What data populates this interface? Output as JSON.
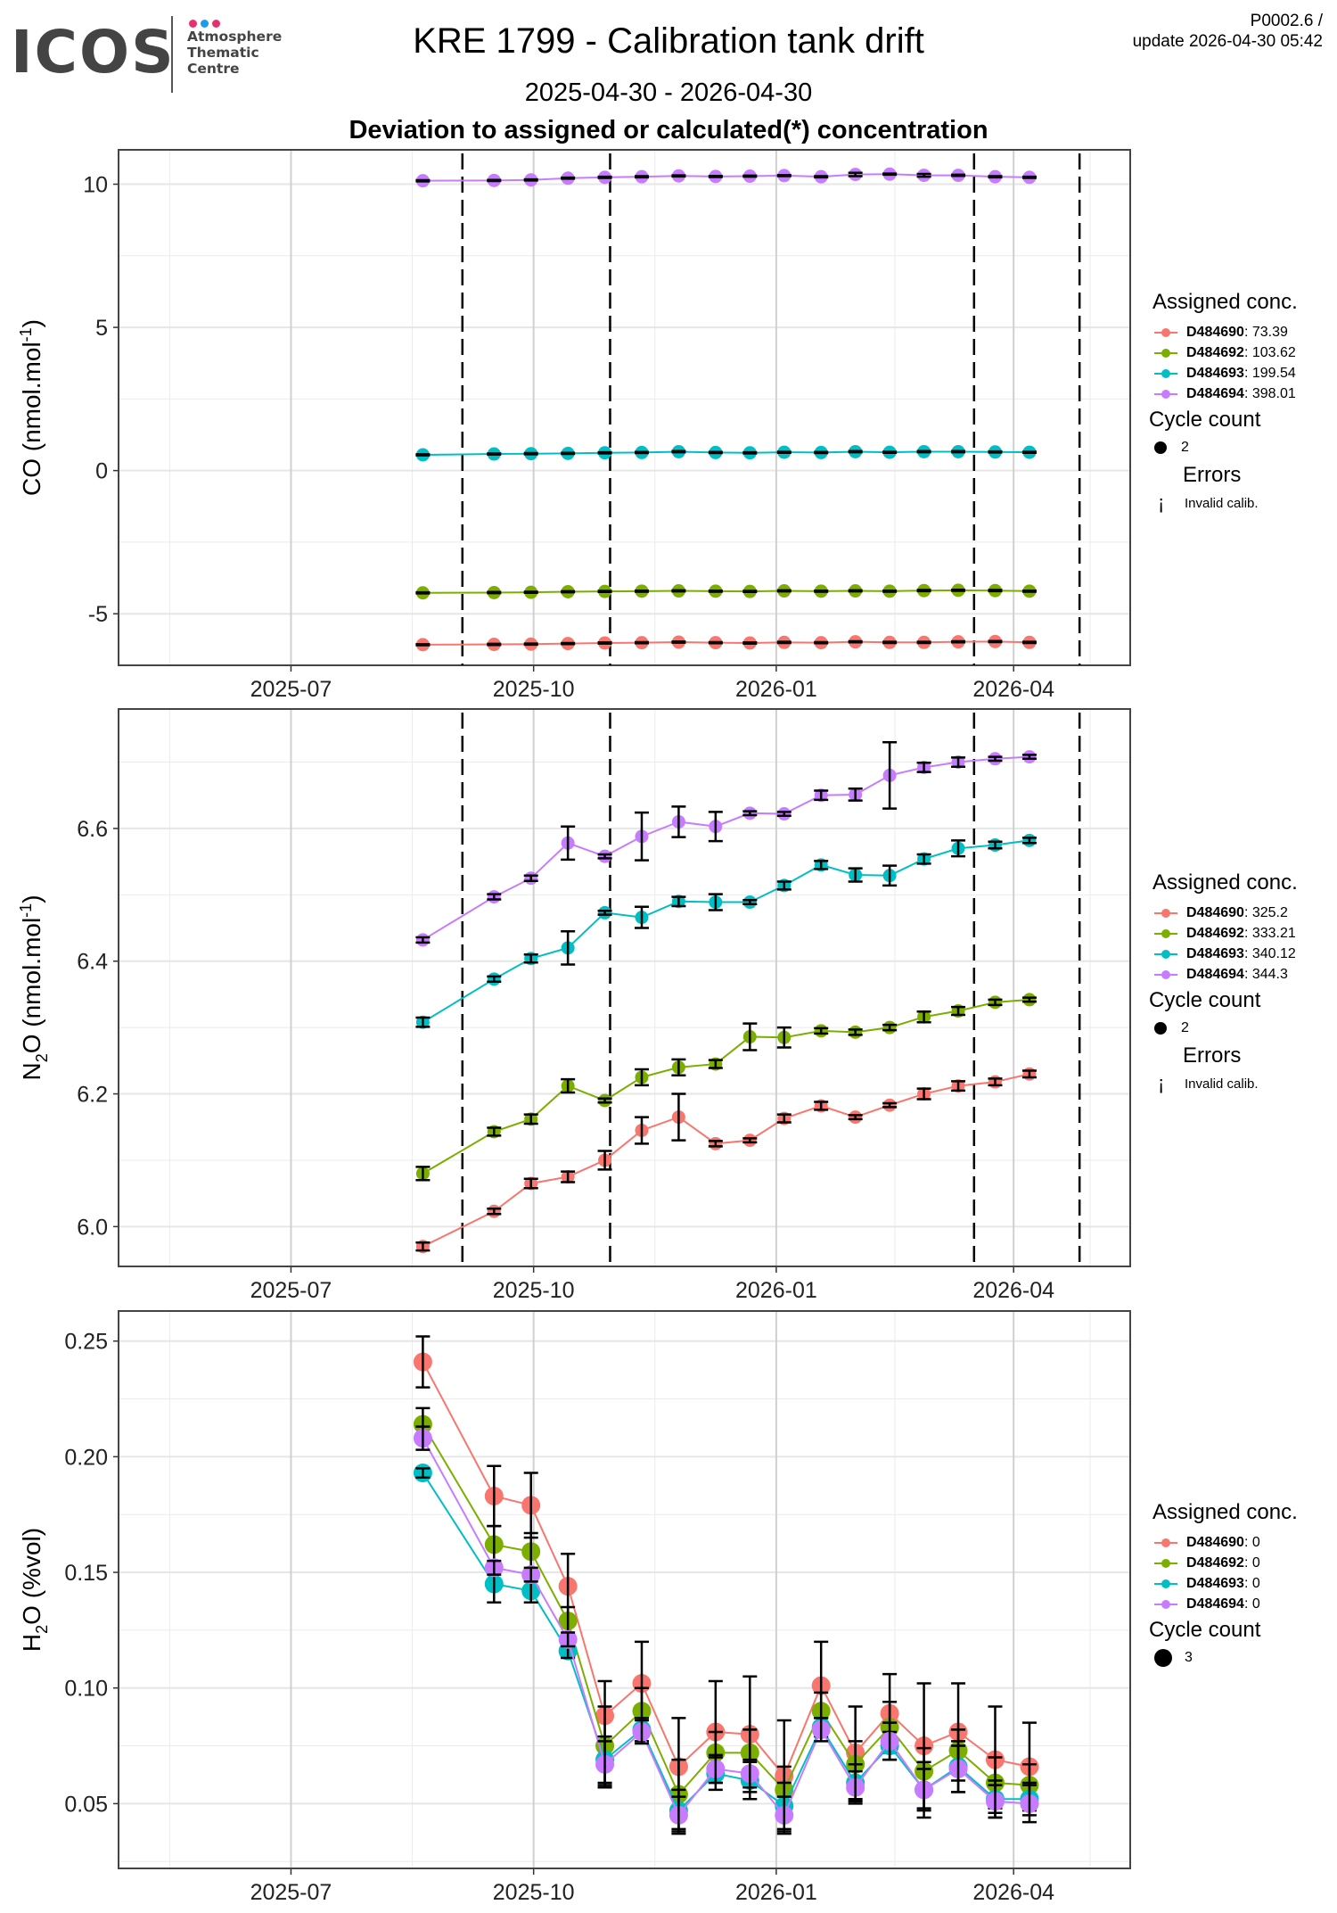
{
  "header": {
    "logo_text": "ICOS",
    "logo_sub": [
      "Atmosphere",
      "Thematic",
      "Centre"
    ],
    "logo_dot_colors": [
      "#e6306f",
      "#1e9be9",
      "#e6306f"
    ],
    "title": "KRE 1799 - Calibration tank drift",
    "date_range": "2025-04-30 - 2026-04-30",
    "subtitle": "Deviation to assigned or calculated(*) concentration",
    "meta_line1": "P0002.6 /",
    "meta_line2": "update  2026-04-30 05:42"
  },
  "series_colors": {
    "D484690": "#F8766D",
    "D484692": "#7CAE00",
    "D484693": "#00BFC4",
    "D484694": "#C77CFF"
  },
  "chart_data": [
    {
      "type": "line",
      "panel": "CO",
      "ylabel": "CO (nmol.mol-1)",
      "ylabel_main": "CO (nmol.mol",
      "ylabel_sup": "-1",
      "ylabel_end": ")",
      "ylim": [
        -6.8,
        11.2
      ],
      "yticks": [
        -5,
        0,
        5,
        10
      ],
      "ytick_labels": [
        "-5",
        "0",
        "5",
        "10"
      ],
      "xlim": [
        "2025-04-30",
        "2026-04-30"
      ],
      "xticks": [
        "2025-07-01",
        "2025-10-01",
        "2026-01-01",
        "2026-04-01"
      ],
      "xtick_labels": [
        "2025-07",
        "2025-10",
        "2026-01",
        "2026-04"
      ],
      "grid": true,
      "vlines_dashed": [
        "2025-09-04",
        "2025-10-30",
        "2026-03-17",
        "2026-04-26"
      ],
      "x": [
        "2025-08-20",
        "2025-09-16",
        "2025-09-30",
        "2025-10-14",
        "2025-10-28",
        "2025-11-11",
        "2025-11-25",
        "2025-12-09",
        "2025-12-22",
        "2026-01-04",
        "2026-01-18",
        "2026-01-31",
        "2026-02-13",
        "2026-02-26",
        "2026-03-11",
        "2026-03-25",
        "2026-04-07"
      ],
      "series": [
        {
          "name": "D484690",
          "values": [
            -6.08,
            -6.07,
            -6.06,
            -6.04,
            -6.02,
            -6.01,
            -5.99,
            -6.01,
            -6.02,
            -6.0,
            -6.01,
            -5.98,
            -6.0,
            -6.0,
            -5.98,
            -5.97,
            -6.0
          ],
          "errors": [
            0.02,
            0.02,
            0.02,
            0.02,
            0.02,
            0.02,
            0.02,
            0.02,
            0.02,
            0.02,
            0.02,
            0.02,
            0.02,
            0.02,
            0.02,
            0.02,
            0.02
          ]
        },
        {
          "name": "D484692",
          "values": [
            -4.27,
            -4.26,
            -4.25,
            -4.23,
            -4.22,
            -4.21,
            -4.2,
            -4.21,
            -4.22,
            -4.2,
            -4.21,
            -4.2,
            -4.21,
            -4.19,
            -4.18,
            -4.19,
            -4.21
          ],
          "errors": [
            0.02,
            0.02,
            0.02,
            0.02,
            0.02,
            0.02,
            0.02,
            0.02,
            0.02,
            0.02,
            0.02,
            0.02,
            0.02,
            0.02,
            0.02,
            0.02,
            0.02
          ]
        },
        {
          "name": "D484693",
          "values": [
            0.55,
            0.58,
            0.59,
            0.6,
            0.62,
            0.63,
            0.66,
            0.63,
            0.62,
            0.64,
            0.63,
            0.66,
            0.64,
            0.66,
            0.66,
            0.65,
            0.64
          ],
          "errors": [
            0.02,
            0.02,
            0.02,
            0.02,
            0.02,
            0.02,
            0.02,
            0.02,
            0.02,
            0.02,
            0.02,
            0.02,
            0.02,
            0.02,
            0.02,
            0.02,
            0.02
          ]
        },
        {
          "name": "D484694",
          "values": [
            10.12,
            10.13,
            10.15,
            10.21,
            10.24,
            10.26,
            10.29,
            10.27,
            10.28,
            10.3,
            10.26,
            10.34,
            10.35,
            10.31,
            10.31,
            10.26,
            10.24
          ],
          "errors": [
            0.02,
            0.02,
            0.02,
            0.02,
            0.02,
            0.02,
            0.02,
            0.02,
            0.02,
            0.02,
            0.02,
            0.06,
            0.02,
            0.05,
            0.02,
            0.02,
            0.02
          ]
        }
      ],
      "legend": {
        "title": "Assigned conc.",
        "entries": [
          {
            "id": "D484690",
            "value": ": 73.39"
          },
          {
            "id": "D484692",
            "value": ": 103.62"
          },
          {
            "id": "D484693",
            "value": ": 199.54"
          },
          {
            "id": "D484694",
            "value": ": 398.01"
          }
        ],
        "cycle_title": "Cycle count",
        "cycle_value": "2",
        "errors_title": "Errors",
        "errors_glyph": "¡",
        "errors_label": "Invalid calib."
      }
    },
    {
      "type": "line",
      "panel": "N2O",
      "ylabel_main": "N",
      "ylabel_sub": "2",
      "ylabel_rest": "O (nmol.mol",
      "ylabel_sup": "-1",
      "ylabel_end": ")",
      "ylim": [
        5.94,
        6.78
      ],
      "yticks": [
        6.0,
        6.2,
        6.4,
        6.6
      ],
      "ytick_labels": [
        "6.0",
        "6.2",
        "6.4",
        "6.6"
      ],
      "xlim": [
        "2025-04-30",
        "2026-04-30"
      ],
      "xticks": [
        "2025-07-01",
        "2025-10-01",
        "2026-01-01",
        "2026-04-01"
      ],
      "xtick_labels": [
        "2025-07",
        "2025-10",
        "2026-01",
        "2026-04"
      ],
      "grid": true,
      "vlines_dashed": [
        "2025-09-04",
        "2025-10-30",
        "2026-03-17",
        "2026-04-26"
      ],
      "x": [
        "2025-08-20",
        "2025-09-16",
        "2025-09-30",
        "2025-10-14",
        "2025-10-28",
        "2025-11-11",
        "2025-11-25",
        "2025-12-09",
        "2025-12-22",
        "2026-01-04",
        "2026-01-18",
        "2026-01-31",
        "2026-02-13",
        "2026-02-26",
        "2026-03-11",
        "2026-03-25",
        "2026-04-07"
      ],
      "series": [
        {
          "name": "D484690",
          "values": [
            5.97,
            6.023,
            6.065,
            6.075,
            6.1,
            6.145,
            6.165,
            6.125,
            6.13,
            6.163,
            6.182,
            6.165,
            6.183,
            6.2,
            6.212,
            6.218,
            6.23
          ],
          "errors": [
            0.006,
            0.004,
            0.007,
            0.008,
            0.014,
            0.02,
            0.035,
            0.004,
            0.003,
            0.006,
            0.006,
            0.003,
            0.003,
            0.008,
            0.007,
            0.005,
            0.005
          ]
        },
        {
          "name": "D484692",
          "values": [
            6.08,
            6.143,
            6.162,
            6.212,
            6.19,
            6.225,
            6.24,
            6.245,
            6.286,
            6.285,
            6.295,
            6.293,
            6.3,
            6.316,
            6.325,
            6.338,
            6.342
          ],
          "errors": [
            0.01,
            0.006,
            0.007,
            0.01,
            0.003,
            0.012,
            0.012,
            0.006,
            0.02,
            0.015,
            0.004,
            0.004,
            0.004,
            0.008,
            0.006,
            0.004,
            0.003
          ]
        },
        {
          "name": "D484693",
          "values": [
            6.308,
            6.373,
            6.404,
            6.42,
            6.473,
            6.466,
            6.49,
            6.489,
            6.489,
            6.514,
            6.545,
            6.53,
            6.529,
            6.554,
            6.57,
            6.575,
            6.582
          ],
          "errors": [
            0.007,
            0.004,
            0.006,
            0.025,
            0.003,
            0.016,
            0.007,
            0.012,
            0.003,
            0.006,
            0.006,
            0.01,
            0.015,
            0.007,
            0.012,
            0.005,
            0.004
          ]
        },
        {
          "name": "D484694",
          "values": [
            6.432,
            6.497,
            6.525,
            6.578,
            6.558,
            6.588,
            6.61,
            6.603,
            6.623,
            6.622,
            6.65,
            6.651,
            6.68,
            6.692,
            6.7,
            6.705,
            6.708
          ],
          "errors": [
            0.004,
            0.004,
            0.004,
            0.025,
            0.003,
            0.036,
            0.023,
            0.022,
            0.003,
            0.003,
            0.007,
            0.009,
            0.05,
            0.007,
            0.007,
            0.003,
            0.003
          ]
        }
      ],
      "legend": {
        "title": "Assigned conc.",
        "entries": [
          {
            "id": "D484690",
            "value": ": 325.2"
          },
          {
            "id": "D484692",
            "value": ": 333.21"
          },
          {
            "id": "D484693",
            "value": ": 340.12"
          },
          {
            "id": "D484694",
            "value": ": 344.3"
          }
        ],
        "cycle_title": "Cycle count",
        "cycle_value": "2",
        "errors_title": "Errors",
        "errors_glyph": "¡",
        "errors_label": "Invalid calib."
      }
    },
    {
      "type": "line",
      "panel": "H2O",
      "ylabel_main": "H",
      "ylabel_sub": "2",
      "ylabel_rest": "O (%vol)",
      "ylim": [
        0.022,
        0.263
      ],
      "yticks": [
        0.05,
        0.1,
        0.15,
        0.2,
        0.25
      ],
      "ytick_labels": [
        "0.05",
        "0.10",
        "0.15",
        "0.20",
        "0.25"
      ],
      "xlim": [
        "2025-04-30",
        "2026-04-30"
      ],
      "xticks": [
        "2025-07-01",
        "2025-10-01",
        "2026-01-01",
        "2026-04-01"
      ],
      "xtick_labels": [
        "2025-07",
        "2025-10",
        "2026-01",
        "2026-04"
      ],
      "grid": true,
      "vlines_dashed": [],
      "x": [
        "2025-08-20",
        "2025-09-16",
        "2025-09-30",
        "2025-10-14",
        "2025-10-28",
        "2025-11-11",
        "2025-11-25",
        "2025-12-09",
        "2025-12-22",
        "2026-01-04",
        "2026-01-18",
        "2026-01-31",
        "2026-02-13",
        "2026-02-26",
        "2026-03-11",
        "2026-03-25",
        "2026-04-07"
      ],
      "series": [
        {
          "name": "D484690",
          "values": [
            0.241,
            0.183,
            0.179,
            0.144,
            0.088,
            0.102,
            0.066,
            0.081,
            0.08,
            0.062,
            0.101,
            0.072,
            0.089,
            0.075,
            0.081,
            0.069,
            0.066
          ],
          "errors": [
            0.011,
            0.013,
            0.014,
            0.014,
            0.015,
            0.018,
            0.021,
            0.022,
            0.025,
            0.024,
            0.019,
            0.02,
            0.017,
            0.027,
            0.021,
            0.023,
            0.019
          ]
        },
        {
          "name": "D484692",
          "values": [
            0.214,
            0.162,
            0.159,
            0.129,
            0.075,
            0.09,
            0.054,
            0.072,
            0.072,
            0.056,
            0.09,
            0.067,
            0.083,
            0.064,
            0.073,
            0.059,
            0.058
          ],
          "errors": [
            0.007,
            0.008,
            0.008,
            0.006,
            0.017,
            0.01,
            0.015,
            0.009,
            0.01,
            0.01,
            0.008,
            0.01,
            0.011,
            0.01,
            0.009,
            0.011,
            0.009
          ]
        },
        {
          "name": "D484693",
          "values": [
            0.193,
            0.145,
            0.142,
            0.116,
            0.069,
            0.082,
            0.047,
            0.063,
            0.06,
            0.049,
            0.083,
            0.059,
            0.075,
            0.056,
            0.066,
            0.052,
            0.052
          ],
          "errors": [
            0.002,
            0.008,
            0.005,
            0.003,
            0.01,
            0.005,
            0.009,
            0.007,
            0.008,
            0.01,
            0.004,
            0.008,
            0.006,
            0.012,
            0.011,
            0.008,
            0.007
          ]
        },
        {
          "name": "D484694",
          "values": [
            0.208,
            0.152,
            0.149,
            0.121,
            0.067,
            0.081,
            0.045,
            0.065,
            0.063,
            0.045,
            0.082,
            0.057,
            0.077,
            0.056,
            0.065,
            0.051,
            0.05
          ],
          "errors": [
            0.005,
            0.003,
            0.003,
            0.003,
            0.01,
            0.005,
            0.008,
            0.006,
            0.006,
            0.008,
            0.005,
            0.007,
            0.008,
            0.009,
            0.01,
            0.007,
            0.008
          ]
        }
      ],
      "legend": {
        "title": "Assigned conc.",
        "entries": [
          {
            "id": "D484690",
            "value": ": 0"
          },
          {
            "id": "D484692",
            "value": ": 0"
          },
          {
            "id": "D484693",
            "value": ": 0"
          },
          {
            "id": "D484694",
            "value": ": 0"
          }
        ],
        "cycle_title": "Cycle count",
        "cycle_value": "3"
      }
    }
  ]
}
